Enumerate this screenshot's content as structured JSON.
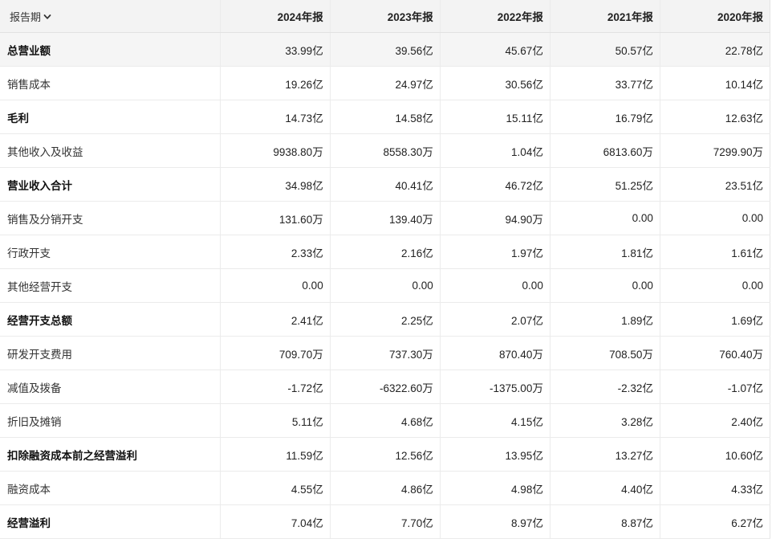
{
  "header": {
    "period_label": "报告期",
    "years": [
      "2024年报",
      "2023年报",
      "2022年报",
      "2021年报",
      "2020年报"
    ]
  },
  "rows": [
    {
      "label": "总营业额",
      "bold": true,
      "highlight": true,
      "values": [
        "33.99亿",
        "39.56亿",
        "45.67亿",
        "50.57亿",
        "22.78亿"
      ]
    },
    {
      "label": "销售成本",
      "bold": false,
      "values": [
        "19.26亿",
        "24.97亿",
        "30.56亿",
        "33.77亿",
        "10.14亿"
      ]
    },
    {
      "label": "毛利",
      "bold": true,
      "values": [
        "14.73亿",
        "14.58亿",
        "15.11亿",
        "16.79亿",
        "12.63亿"
      ]
    },
    {
      "label": "其他收入及收益",
      "bold": false,
      "values": [
        "9938.80万",
        "8558.30万",
        "1.04亿",
        "6813.60万",
        "7299.90万"
      ]
    },
    {
      "label": "营业收入合计",
      "bold": true,
      "values": [
        "34.98亿",
        "40.41亿",
        "46.72亿",
        "51.25亿",
        "23.51亿"
      ]
    },
    {
      "label": "销售及分销开支",
      "bold": false,
      "values": [
        "131.60万",
        "139.40万",
        "94.90万",
        "0.00",
        "0.00"
      ]
    },
    {
      "label": "行政开支",
      "bold": false,
      "values": [
        "2.33亿",
        "2.16亿",
        "1.97亿",
        "1.81亿",
        "1.61亿"
      ]
    },
    {
      "label": "其他经营开支",
      "bold": false,
      "values": [
        "0.00",
        "0.00",
        "0.00",
        "0.00",
        "0.00"
      ]
    },
    {
      "label": "经营开支总额",
      "bold": true,
      "values": [
        "2.41亿",
        "2.25亿",
        "2.07亿",
        "1.89亿",
        "1.69亿"
      ]
    },
    {
      "label": "研发开支费用",
      "bold": false,
      "values": [
        "709.70万",
        "737.30万",
        "870.40万",
        "708.50万",
        "760.40万"
      ]
    },
    {
      "label": "减值及拨备",
      "bold": false,
      "values": [
        "-1.72亿",
        "-6322.60万",
        "-1375.00万",
        "-2.32亿",
        "-1.07亿"
      ]
    },
    {
      "label": "折旧及摊销",
      "bold": false,
      "values": [
        "5.11亿",
        "4.68亿",
        "4.15亿",
        "3.28亿",
        "2.40亿"
      ]
    },
    {
      "label": "扣除融资成本前之经营溢利",
      "bold": true,
      "values": [
        "11.59亿",
        "12.56亿",
        "13.95亿",
        "13.27亿",
        "10.60亿"
      ]
    },
    {
      "label": "融资成本",
      "bold": false,
      "values": [
        "4.55亿",
        "4.86亿",
        "4.98亿",
        "4.40亿",
        "4.33亿"
      ]
    },
    {
      "label": "经营溢利",
      "bold": true,
      "values": [
        "7.04亿",
        "7.70亿",
        "8.97亿",
        "8.87亿",
        "6.27亿"
      ]
    }
  ]
}
